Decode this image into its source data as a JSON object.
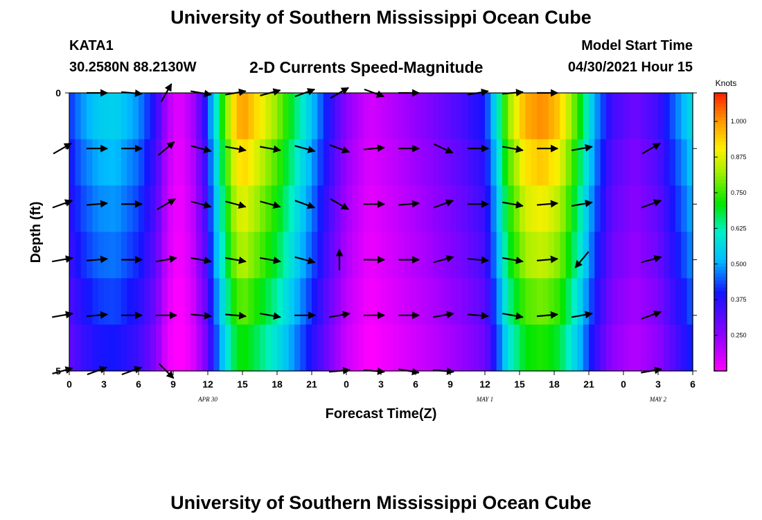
{
  "header": {
    "title": "University of Southern Mississippi Ocean Cube",
    "station_id": "KATA1",
    "coords": "30.2580N  88.2130W",
    "plot_title": "2-D Currents Speed-Magnitude",
    "model_label": "Model Start Time",
    "model_date": "04/30/2021 Hour 15"
  },
  "footer": {
    "title": "University of Southern Mississippi Ocean Cube"
  },
  "chart_data": {
    "type": "heatmap",
    "title": "2-D Currents Speed-Magnitude",
    "xlabel": "Forecast Time(Z)",
    "ylabel": "Depth (ft)",
    "x_tick_labels": [
      "0",
      "3",
      "6",
      "9",
      "12",
      "15",
      "18",
      "21",
      "0",
      "3",
      "6",
      "9",
      "12",
      "15",
      "18",
      "21",
      "0",
      "3",
      "6"
    ],
    "x_range_hours": [
      0,
      54
    ],
    "y_range_ft": [
      0,
      5
    ],
    "y_tick_labels": [
      "0",
      "5"
    ],
    "y_ticks_ft": [
      0,
      1,
      2,
      3,
      4,
      5
    ],
    "date_labels": [
      {
        "text": "APR  30",
        "hour": 12
      },
      {
        "text": "MAY  1",
        "hour": 36
      },
      {
        "text": "MAY  2",
        "hour": 51
      }
    ],
    "colorbar": {
      "label": "Knots",
      "min": 0.125,
      "max": 1.1,
      "ticks": [
        "0.250",
        "0.375",
        "0.500",
        "0.625",
        "0.750",
        "0.875",
        "1.000"
      ],
      "tick_values": [
        0.25,
        0.375,
        0.5,
        0.625,
        0.75,
        0.875,
        1.0
      ]
    },
    "speed_profile_knots": [
      {
        "hour": 0,
        "v": 0.36
      },
      {
        "hour": 1,
        "v": 0.42
      },
      {
        "hour": 2.5,
        "v": 0.47
      },
      {
        "hour": 4,
        "v": 0.48
      },
      {
        "hour": 6,
        "v": 0.42
      },
      {
        "hour": 7.5,
        "v": 0.32
      },
      {
        "hour": 8.5,
        "v": 0.18
      },
      {
        "hour": 9.5,
        "v": 0.13
      },
      {
        "hour": 10.8,
        "v": 0.2
      },
      {
        "hour": 11.8,
        "v": 0.33
      },
      {
        "hour": 12.5,
        "v": 0.48
      },
      {
        "hour": 13.2,
        "v": 0.62
      },
      {
        "hour": 14.2,
        "v": 0.8
      },
      {
        "hour": 15,
        "v": 0.87
      },
      {
        "hour": 16.5,
        "v": 0.79
      },
      {
        "hour": 18,
        "v": 0.7
      },
      {
        "hour": 19.5,
        "v": 0.58
      },
      {
        "hour": 21,
        "v": 0.46
      },
      {
        "hour": 22.5,
        "v": 0.33
      },
      {
        "hour": 24,
        "v": 0.22
      },
      {
        "hour": 26,
        "v": 0.15
      },
      {
        "hour": 28,
        "v": 0.18
      },
      {
        "hour": 31,
        "v": 0.23
      },
      {
        "hour": 34,
        "v": 0.29
      },
      {
        "hour": 36,
        "v": 0.35
      },
      {
        "hour": 37,
        "v": 0.5
      },
      {
        "hour": 38,
        "v": 0.7
      },
      {
        "hour": 39.5,
        "v": 0.85
      },
      {
        "hour": 41,
        "v": 0.88
      },
      {
        "hour": 42.5,
        "v": 0.82
      },
      {
        "hour": 44,
        "v": 0.65
      },
      {
        "hour": 45.5,
        "v": 0.44
      },
      {
        "hour": 47,
        "v": 0.3
      },
      {
        "hour": 49,
        "v": 0.25
      },
      {
        "hour": 51,
        "v": 0.3
      },
      {
        "hour": 52.5,
        "v": 0.4
      },
      {
        "hour": 54,
        "v": 0.5
      }
    ],
    "depth_factor": [
      1.15,
      1.08,
      1.02,
      0.97,
      0.9,
      0.83
    ],
    "vector_depths_ft": [
      0,
      1,
      2,
      3,
      4,
      5
    ],
    "vector_hours": [
      0,
      3,
      6,
      9,
      12,
      15,
      18,
      21,
      24,
      27,
      30,
      33,
      36,
      39,
      42,
      45,
      48,
      51,
      54
    ],
    "vector_angles_deg": [
      [
        null,
        0,
        -5,
        60,
        -10,
        10,
        15,
        20,
        30,
        -20,
        0,
        null,
        10,
        5,
        0,
        null,
        null,
        null,
        null
      ],
      [
        30,
        0,
        0,
        40,
        -15,
        -10,
        -10,
        -15,
        -20,
        5,
        0,
        -25,
        0,
        -10,
        0,
        10,
        null,
        30,
        null
      ],
      [
        20,
        5,
        0,
        30,
        -15,
        -15,
        -15,
        -20,
        -30,
        0,
        5,
        20,
        0,
        -10,
        5,
        10,
        null,
        20,
        null
      ],
      [
        10,
        5,
        0,
        10,
        -10,
        -10,
        -10,
        -15,
        90,
        0,
        0,
        15,
        -5,
        -10,
        5,
        -130,
        null,
        15,
        null
      ],
      [
        10,
        5,
        0,
        0,
        -5,
        -5,
        -10,
        0,
        10,
        0,
        0,
        10,
        -5,
        -10,
        5,
        10,
        null,
        20,
        null
      ],
      [
        15,
        20,
        20,
        -45,
        null,
        null,
        null,
        null,
        5,
        -5,
        -10,
        -5,
        null,
        null,
        null,
        null,
        null,
        10,
        null
      ]
    ]
  }
}
